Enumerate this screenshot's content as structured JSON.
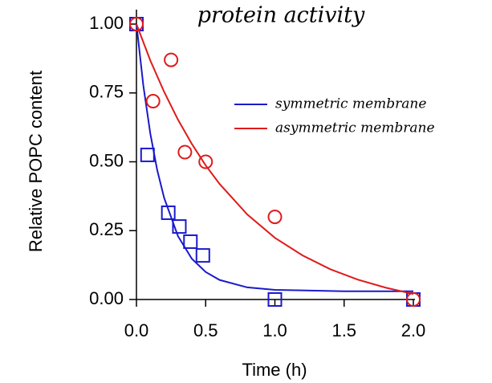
{
  "chart_data": {
    "type": "scatter-fit",
    "title": "protein activity",
    "x_label": "Time (h)",
    "y_label": "Relative POPC content",
    "xlim": [
      0,
      2.0
    ],
    "ylim": [
      0,
      1.0
    ],
    "xticks": [
      {
        "value": 0,
        "label": "0.0"
      },
      {
        "value": 0.5,
        "label": "0.5"
      },
      {
        "value": 1.0,
        "label": "1.0"
      },
      {
        "value": 1.5,
        "label": "1.5"
      },
      {
        "value": 2.0,
        "label": "2.0"
      }
    ],
    "yticks": [
      {
        "value": 0,
        "label": "0.00"
      },
      {
        "value": 0.25,
        "label": "0.25"
      },
      {
        "value": 0.5,
        "label": "0.50"
      },
      {
        "value": 0.75,
        "label": "0.75"
      },
      {
        "value": 1.0,
        "label": "1.00"
      }
    ],
    "series": [
      {
        "name": "symmetric membrane",
        "color": "#1a1acc",
        "marker": "square",
        "x": [
          0,
          0.05,
          0.1,
          0.15,
          0.2,
          0.3,
          0.4,
          0.5,
          0.6,
          0.8,
          1.0,
          1.5,
          2.0
        ],
        "values": [
          1.0,
          0.776,
          0.603,
          0.47,
          0.369,
          0.23,
          0.148,
          0.1,
          0.071,
          0.044,
          0.035,
          0.03,
          0.03
        ],
        "points": {
          "x": [
            0,
            0.08,
            0.23,
            0.31,
            0.39,
            0.48,
            1.0,
            2.0
          ],
          "values": [
            1.0,
            0.525,
            0.315,
            0.265,
            0.21,
            0.16,
            0.0,
            0.0
          ]
        }
      },
      {
        "name": "asymmetric membrane",
        "color": "#e01a1a",
        "marker": "circle",
        "x": [
          0,
          0.1,
          0.2,
          0.3,
          0.4,
          0.5,
          0.6,
          0.8,
          1.0,
          1.2,
          1.4,
          1.6,
          1.8,
          2.0
        ],
        "values": [
          1.0,
          0.868,
          0.754,
          0.653,
          0.565,
          0.487,
          0.42,
          0.309,
          0.224,
          0.16,
          0.11,
          0.072,
          0.043,
          0.02
        ],
        "points": {
          "x": [
            0,
            0.12,
            0.25,
            0.35,
            0.5,
            1.0,
            2.0
          ],
          "values": [
            1.0,
            0.72,
            0.87,
            0.535,
            0.5,
            0.3,
            0.0
          ]
        }
      }
    ]
  }
}
